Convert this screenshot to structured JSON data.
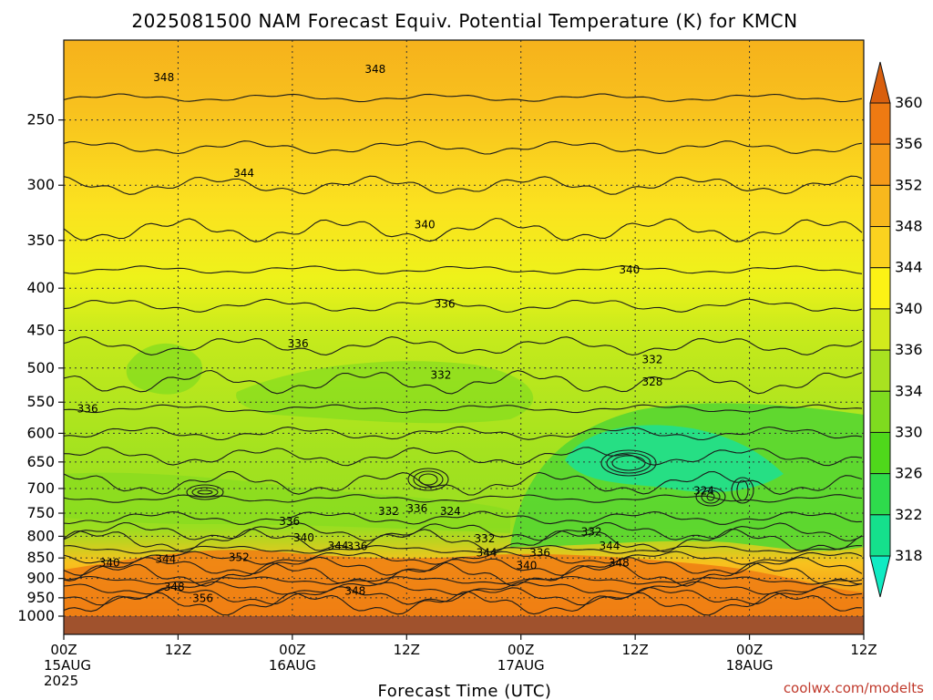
{
  "chart_data": {
    "type": "heatmap",
    "title": "2025081500 NAM Forecast Equiv. Potential Temperature (K) for KMCN",
    "xlabel": "Forecast Time (UTC)",
    "ylabel": "",
    "x_range_hours": [
      0,
      84
    ],
    "x_ticks": [
      {
        "hour": 0,
        "lines": [
          "00Z",
          "15AUG",
          "2025"
        ]
      },
      {
        "hour": 12,
        "lines": [
          "12Z"
        ]
      },
      {
        "hour": 24,
        "lines": [
          "00Z",
          "16AUG"
        ]
      },
      {
        "hour": 36,
        "lines": [
          "12Z"
        ]
      },
      {
        "hour": 48,
        "lines": [
          "00Z",
          "17AUG"
        ]
      },
      {
        "hour": 60,
        "lines": [
          "12Z"
        ]
      },
      {
        "hour": 72,
        "lines": [
          "00Z",
          "18AUG"
        ]
      },
      {
        "hour": 84,
        "lines": [
          "12Z"
        ]
      }
    ],
    "y_ticks": [
      250,
      300,
      350,
      400,
      450,
      500,
      550,
      600,
      650,
      700,
      750,
      800,
      850,
      900,
      950,
      1000
    ],
    "y_scale": "log-pressure",
    "y_range_hpa": [
      1000,
      200
    ],
    "colorbar": {
      "labels": [
        360,
        356,
        352,
        348,
        344,
        340,
        336,
        334,
        330,
        326,
        322,
        318
      ],
      "colors": [
        "#d95f0e",
        "#ee7a12",
        "#f59a1a",
        "#f8b81d",
        "#fbd21f",
        "#fcf215",
        "#d2ea1c",
        "#a9e220",
        "#7fdb1f",
        "#4fd81b",
        "#2edb4c",
        "#15e08c",
        "#10ebc3"
      ]
    },
    "contour_labels": [
      {
        "value": "348",
        "t": 10.5,
        "p": 222
      },
      {
        "value": "348",
        "t": 32.7,
        "p": 217
      },
      {
        "value": "344",
        "t": 18.9,
        "p": 290
      },
      {
        "value": "340",
        "t": 37.9,
        "p": 335
      },
      {
        "value": "340",
        "t": 59.4,
        "p": 380
      },
      {
        "value": "336",
        "t": 40.0,
        "p": 418
      },
      {
        "value": "336",
        "t": 24.6,
        "p": 467
      },
      {
        "value": "336",
        "t": 2.5,
        "p": 560
      },
      {
        "value": "332",
        "t": 39.6,
        "p": 510
      },
      {
        "value": "332",
        "t": 61.8,
        "p": 488
      },
      {
        "value": "328",
        "t": 61.8,
        "p": 520
      },
      {
        "value": "324",
        "t": 67.2,
        "p": 705
      },
      {
        "value": "324",
        "t": 40.6,
        "p": 746
      },
      {
        "value": "332",
        "t": 34.1,
        "p": 746
      },
      {
        "value": "336",
        "t": 37.1,
        "p": 740
      },
      {
        "value": "332",
        "t": 44.2,
        "p": 805
      },
      {
        "value": "336",
        "t": 23.7,
        "p": 767
      },
      {
        "value": "340",
        "t": 25.2,
        "p": 803
      },
      {
        "value": "344",
        "t": 28.8,
        "p": 822
      },
      {
        "value": "336",
        "t": 30.8,
        "p": 823
      },
      {
        "value": "344",
        "t": 44.4,
        "p": 838
      },
      {
        "value": "336",
        "t": 50.0,
        "p": 838
      },
      {
        "value": "332",
        "t": 55.4,
        "p": 790
      },
      {
        "value": "344",
        "t": 57.3,
        "p": 822
      },
      {
        "value": "348",
        "t": 58.3,
        "p": 862
      },
      {
        "value": "340",
        "t": 48.6,
        "p": 868
      },
      {
        "value": "340",
        "t": 4.8,
        "p": 862
      },
      {
        "value": "344",
        "t": 10.7,
        "p": 853
      },
      {
        "value": "352",
        "t": 18.4,
        "p": 848
      },
      {
        "value": "348",
        "t": 11.6,
        "p": 922
      },
      {
        "value": "356",
        "t": 14.6,
        "p": 952
      },
      {
        "value": "348",
        "t": 30.6,
        "p": 932
      }
    ]
  },
  "credit": "coolwx.com/modelts"
}
